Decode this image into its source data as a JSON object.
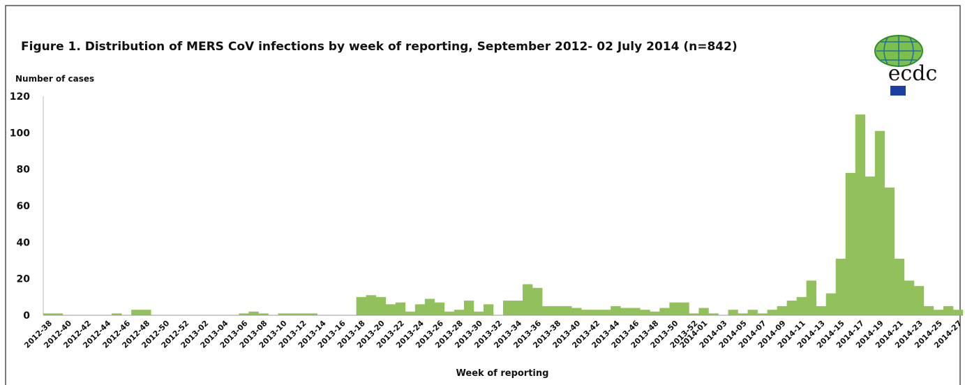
{
  "chart_data": {
    "type": "bar",
    "title": "Figure 1. Distribution of MERS CoV infections by week of reporting, September 2012- 02 July 2014 (n=842)",
    "y_label": "Number of cases",
    "x_label": "Week of reporting",
    "logo": "ecdc",
    "color": "#92c05a",
    "ylim": [
      0,
      120
    ],
    "yticks": [
      0,
      20,
      40,
      60,
      80,
      100,
      120
    ],
    "categories": [
      "2012-38",
      null,
      "2012-40",
      null,
      "2012-42",
      null,
      "2012-44",
      null,
      "2012-46",
      null,
      "2012-48",
      null,
      "2012-50",
      null,
      "2012-52",
      null,
      "2013-02",
      null,
      "2013-04",
      null,
      "2013-06",
      null,
      "2013-08",
      null,
      "2013-10",
      null,
      "2013-12",
      null,
      "2013-14",
      null,
      "2013-16",
      null,
      "2013-18",
      null,
      "2013-20",
      null,
      "2013-22",
      null,
      "2013-24",
      null,
      "2013-26",
      null,
      "2013-28",
      null,
      "2013-30",
      null,
      "2013-32",
      null,
      "2013-34",
      null,
      "2013-36",
      null,
      "2013-38",
      null,
      "2013-40",
      null,
      "2013-42",
      null,
      "2013-44",
      null,
      "2013-46",
      null,
      "2013-48",
      null,
      "2013-50",
      null,
      "2013-52",
      "2014-01",
      null,
      "2014-03",
      null,
      "2014-05",
      null,
      "2014-07",
      null,
      "2014-09",
      null,
      "2014-11",
      null,
      "2014-13",
      null,
      "2014-15",
      null,
      "2014-17",
      null,
      "2014-19",
      null,
      "2014-21",
      null,
      "2014-23",
      null,
      "2014-25",
      null,
      "2014-27"
    ],
    "values": [
      1,
      1,
      0,
      0,
      0,
      0,
      0,
      1,
      0,
      3,
      3,
      0,
      0,
      0,
      0,
      0,
      0,
      0,
      0,
      0,
      1,
      2,
      1,
      0,
      1,
      1,
      1,
      1,
      0,
      0,
      0,
      0,
      10,
      11,
      10,
      6,
      7,
      2,
      6,
      9,
      7,
      2,
      3,
      8,
      2,
      6,
      0,
      8,
      8,
      17,
      15,
      5,
      5,
      5,
      4,
      3,
      3,
      3,
      5,
      4,
      4,
      3,
      2,
      4,
      7,
      7,
      1,
      4,
      1,
      0,
      3,
      1,
      3,
      1,
      3,
      5,
      8,
      10,
      19,
      5,
      12,
      31,
      78,
      110,
      76,
      101,
      70,
      31,
      19,
      16,
      5,
      3,
      5,
      3
    ]
  }
}
